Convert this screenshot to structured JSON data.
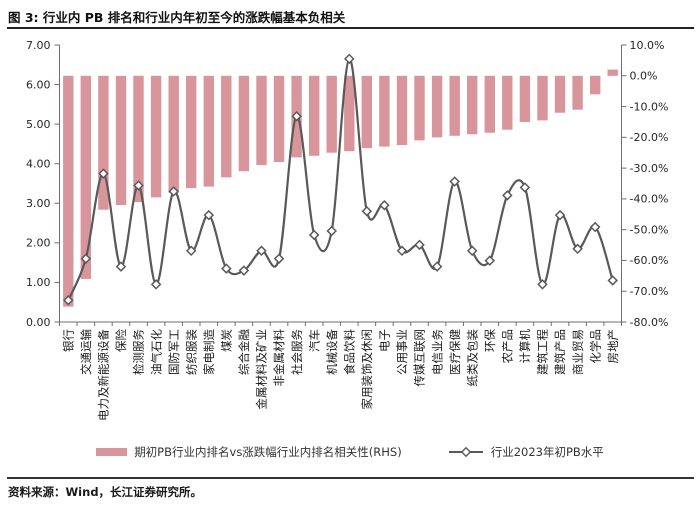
{
  "header": {
    "title": "图 3: 行业内 PB 排名和行业内年初至今的涨跌幅基本负相关"
  },
  "footer": {
    "source": "资料来源：Wind，长江证券研究所。"
  },
  "colors": {
    "bar": "#D9959C",
    "line": "#595959",
    "axis": "#6e6e6e",
    "tick_text": "#262626"
  },
  "chart_data": {
    "type": "bar",
    "title": "行业内 PB 排名和行业内年初至今的涨跌幅基本负相关",
    "categories": [
      "银行",
      "交通运输",
      "电力及新能源设备",
      "保险",
      "检测服务",
      "油气石化",
      "国防军工",
      "纺织服装",
      "家电制造",
      "煤炭",
      "综合金融",
      "金属材料及矿业",
      "非金属材料",
      "社会服务",
      "汽车",
      "机械设备",
      "食品饮料",
      "家用装饰及休闲",
      "电子",
      "公用事业",
      "传媒互联网",
      "电信业务",
      "医疗保健",
      "纸类及包装",
      "环保",
      "农产品",
      "计算机",
      "建筑工程",
      "建筑产品",
      "商业贸易",
      "化学品",
      "房地产"
    ],
    "series": [
      {
        "name": "期初PB行业内排名vs涨跌幅行业内排名相关性(RHS)",
        "type": "bar",
        "axis": "right",
        "unit": "%",
        "values": [
          -75,
          -66,
          -43.5,
          -42,
          -41,
          -39.5,
          -38,
          -36.5,
          -36,
          -33,
          -31,
          -29,
          -28,
          -26.5,
          -26,
          -25,
          -24.5,
          -23.5,
          -23,
          -22.5,
          -21,
          -20,
          -19.5,
          -19,
          -18.5,
          -17.5,
          -15,
          -14.5,
          -12,
          -11,
          -6,
          2
        ]
      },
      {
        "name": "行业2023年初PB水平",
        "type": "line",
        "axis": "left",
        "unit": "x",
        "values": [
          0.55,
          1.6,
          3.75,
          1.4,
          3.45,
          0.95,
          3.3,
          1.8,
          2.7,
          1.35,
          1.3,
          1.8,
          1.6,
          5.2,
          2.2,
          2.3,
          6.65,
          2.8,
          2.95,
          1.8,
          1.95,
          1.4,
          3.55,
          1.8,
          1.55,
          3.2,
          3.4,
          0.95,
          2.7,
          1.85,
          2.4,
          1.05
        ]
      }
    ],
    "left_axis": {
      "min": 0,
      "max": 7,
      "ticks": [
        [
          7,
          "7.00"
        ],
        [
          6,
          "6.00"
        ],
        [
          5,
          "5.00"
        ],
        [
          4,
          "4.00"
        ],
        [
          3,
          "3.00"
        ],
        [
          2,
          "2.00"
        ],
        [
          1,
          "1.00"
        ],
        [
          0,
          "0.00"
        ]
      ]
    },
    "right_axis": {
      "min": -80,
      "max": 10,
      "ticks": [
        [
          10,
          "10.0%"
        ],
        [
          0,
          "0.0%"
        ],
        [
          -10,
          "-10.0%"
        ],
        [
          -20,
          "-20.0%"
        ],
        [
          -30,
          "-30.0%"
        ],
        [
          -40,
          "-40.0%"
        ],
        [
          -50,
          "-50.0%"
        ],
        [
          -60,
          "-60.0%"
        ],
        [
          -70,
          "-70.0%"
        ],
        [
          -80,
          "-80.0%"
        ]
      ]
    },
    "grid": false,
    "legend_position": "bottom"
  }
}
